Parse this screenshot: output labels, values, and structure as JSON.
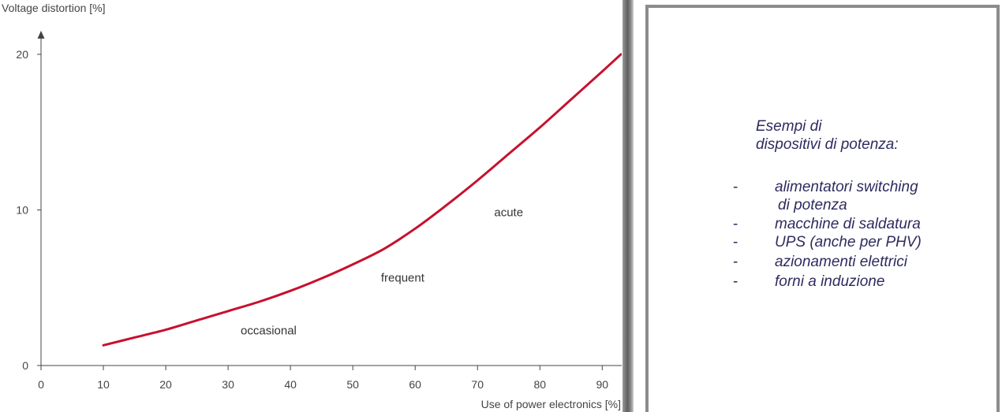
{
  "chart_data": {
    "type": "line",
    "title": "",
    "ylabel": "Voltage distortion [%]",
    "xlabel": "Use of power electronics [%]",
    "xlim": [
      0,
      93
    ],
    "ylim": [
      0,
      20
    ],
    "x_ticks": [
      0,
      10,
      20,
      30,
      40,
      50,
      60,
      70,
      80,
      90
    ],
    "y_ticks": [
      0,
      10,
      20
    ],
    "grid": false,
    "legend": "none",
    "line_color": "#c8102e",
    "series": [
      {
        "x": [
          10,
          15,
          20,
          25,
          30,
          35,
          40,
          45,
          50,
          55,
          60,
          65,
          70,
          75,
          80,
          85,
          90,
          93
        ],
        "y": [
          1.3,
          1.8,
          2.3,
          2.9,
          3.5,
          4.1,
          4.8,
          5.6,
          6.5,
          7.5,
          8.8,
          10.3,
          11.9,
          13.6,
          15.3,
          17.1,
          18.9,
          20.0
        ]
      }
    ],
    "annotations": [
      {
        "text": "occasional",
        "x": 36.5,
        "y": 2.0
      },
      {
        "text": "frequent",
        "x": 58,
        "y": 5.4
      },
      {
        "text": "acute",
        "x": 75,
        "y": 9.6
      }
    ]
  },
  "side_panel": {
    "heading_line1": "Esempi di",
    "heading_line2": "dispositivi di potenza:",
    "dash": "-",
    "items": [
      {
        "line1": "alimentatori switching",
        "line2": "di potenza"
      },
      {
        "line1": "macchine di saldatura"
      },
      {
        "line1": "UPS (anche per PHV)"
      },
      {
        "line1": "azionamenti elettrici"
      },
      {
        "line1": "forni a induzione"
      }
    ]
  }
}
